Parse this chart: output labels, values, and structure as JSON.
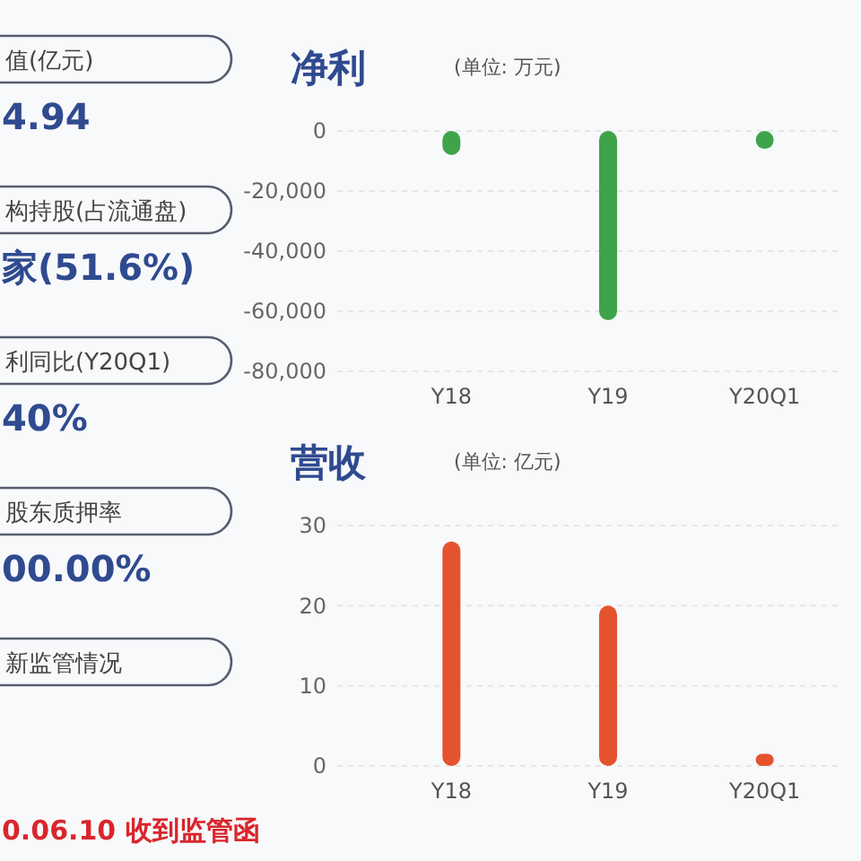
{
  "chart_data": [
    {
      "type": "other",
      "annotations": [
        "值(亿元)",
        "4.94",
        "构持股(占流通盘)",
        "家(51.6%)",
        "利同比(Y20Q1)",
        "40%",
        "股东质押率",
        "00.00%",
        "新监管情况",
        "0.06.10 收到监管函"
      ]
    },
    {
      "type": "bar",
      "title": "净利",
      "subtitle": "(单位: 万元)",
      "categories": [
        "Y18",
        "Y19",
        "Y20Q1"
      ],
      "values": [
        -8000,
        -63000,
        -6000
      ],
      "color": "#3fa34a",
      "ylim": [
        -80000,
        0
      ],
      "yticks": [
        {
          "value": -80000,
          "label": "-80,000"
        },
        {
          "value": -60000,
          "label": "-60,000"
        },
        {
          "value": -40000,
          "label": "-40,000"
        },
        {
          "value": -20000,
          "label": "-20,000"
        },
        0
      ],
      "grid": "y"
    },
    {
      "type": "bar",
      "title": "营收",
      "subtitle": "(单位: 亿元)",
      "categories": [
        "Y18",
        "Y19",
        "Y20Q1"
      ],
      "values": [
        28,
        20,
        1.5
      ],
      "color": "#e5532e",
      "ylim": [
        0,
        30
      ],
      "yticks": [
        0,
        10,
        20,
        30
      ],
      "grid": "y"
    }
  ]
}
